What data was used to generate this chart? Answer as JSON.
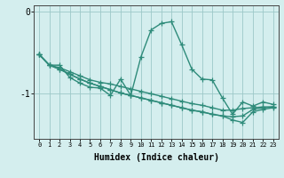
{
  "xlabel": "Humidex (Indice chaleur)",
  "x": [
    0,
    1,
    2,
    3,
    4,
    5,
    6,
    7,
    8,
    9,
    10,
    11,
    12,
    13,
    14,
    15,
    16,
    17,
    18,
    19,
    20,
    21,
    22,
    23
  ],
  "line1": [
    -0.52,
    -0.65,
    -0.65,
    -0.8,
    -0.87,
    -0.92,
    -0.93,
    -1.02,
    -0.82,
    -1.02,
    -0.55,
    -0.22,
    -0.14,
    -0.12,
    -0.4,
    -0.7,
    -0.82,
    -0.83,
    -1.05,
    -1.25,
    -1.1,
    -1.15,
    -1.1,
    -1.13
  ],
  "line2": [
    -0.52,
    -0.65,
    -0.68,
    -0.73,
    -0.78,
    -0.83,
    -0.86,
    -0.88,
    -0.91,
    -0.94,
    -0.97,
    -1.0,
    -1.03,
    -1.06,
    -1.09,
    -1.12,
    -1.14,
    -1.17,
    -1.2,
    -1.2,
    -1.18,
    -1.17,
    -1.16,
    -1.16
  ],
  "line3": [
    -0.52,
    -0.65,
    -0.7,
    -0.76,
    -0.82,
    -0.87,
    -0.91,
    -0.95,
    -0.99,
    -1.02,
    -1.05,
    -1.08,
    -1.11,
    -1.14,
    -1.17,
    -1.2,
    -1.22,
    -1.25,
    -1.27,
    -1.28,
    -1.27,
    -1.19,
    -1.17,
    -1.16
  ],
  "line4": [
    -0.52,
    -0.65,
    -0.7,
    -0.76,
    -0.82,
    -0.87,
    -0.91,
    -0.95,
    -0.99,
    -1.02,
    -1.05,
    -1.08,
    -1.11,
    -1.14,
    -1.17,
    -1.2,
    -1.22,
    -1.25,
    -1.27,
    -1.32,
    -1.35,
    -1.22,
    -1.19,
    -1.17
  ],
  "ylim": [
    -1.55,
    0.08
  ],
  "yticks": [
    0,
    -1
  ],
  "line_color": "#2e8b7a",
  "bg_color": "#d4eeee",
  "grid_color": "#9dc8c8",
  "marker": "+",
  "markersize": 4,
  "linewidth": 1.0
}
